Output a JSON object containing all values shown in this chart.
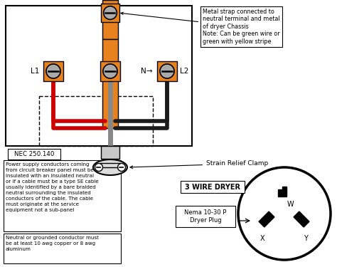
{
  "orange": "#e8821e",
  "wire_red": "#cc0000",
  "wire_black": "#1a1a1a",
  "wire_gray": "#888888",
  "term_gray": "#aaaaaa",
  "white": "#ffffff",
  "label_L1": "L1",
  "label_N": "N",
  "label_L2": "L2",
  "label_W": "W",
  "label_X": "X",
  "label_Y": "Y",
  "nec_label": "NEC 250.140",
  "strain_label": "Strain Relief Clamp",
  "metal_strap_text": "Metal strap connected to\nneutral terminal and metal\nof dryer Chassis\nNote: Can be green wire or\ngreen with yellow stripe",
  "nec_text": "Power supply conductors coming\nfrom circuit breaker panel must be\ninsulated with an insulated neutral\nor if a cable must be a type SE cable\nusually identified by a bare braided\nneutral surrounding the insulated\nconductors of the cable. The cable\nmust originate at the service\nequipment not a sub-panel",
  "neutral_text": "Neutral or grounded conductor must\nbe at least 10 awg copper or 8 awg\naluminum",
  "title": "3 WIRE DRYER",
  "plug_label": "Nema 10-30 P\nDryer Plug"
}
